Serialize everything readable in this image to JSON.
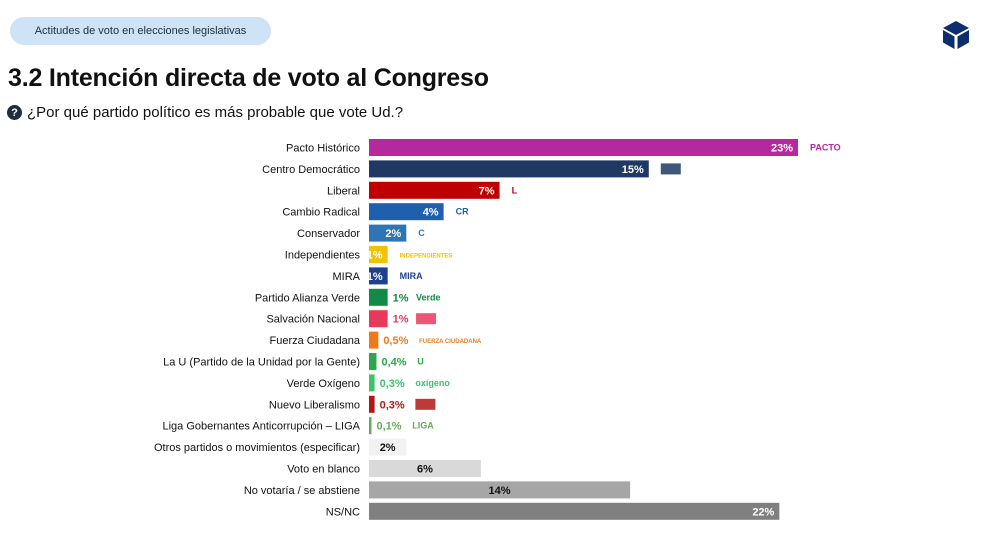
{
  "header": {
    "section_pill": "Actitudes de voto en elecciones legislativas"
  },
  "title": "3.2 Intención directa de voto al Congreso",
  "question": "¿Por qué partido político es más probable que vote Ud.?",
  "icons": {
    "brand": "cube-logo-icon",
    "question": "question-circle-icon"
  },
  "colors": {
    "brand": "#0d2d6c"
  },
  "chart_data": {
    "type": "bar",
    "orientation": "horizontal",
    "categories": [
      "Pacto Histórico",
      "Centro Democrático",
      "Liberal",
      "Cambio Radical",
      "Conservador",
      "Independientes",
      "MIRA",
      "Partido Alianza Verde",
      "Salvación Nacional",
      "Fuerza Ciudadana",
      "La U (Partido de la Unidad por la Gente)",
      "Verde Oxígeno",
      "Nuevo Liberalismo",
      "Liga Gobernantes Anticorrupción – LIGA",
      "Otros partidos o movimientos (especificar)",
      "Voto en blanco",
      "No votaría / se abstiene",
      "NS/NC"
    ],
    "values": [
      23,
      15,
      7,
      4,
      2,
      1,
      1,
      1,
      1,
      0.5,
      0.4,
      0.3,
      0.3,
      0.1,
      2,
      6,
      14,
      22
    ],
    "data_labels": [
      "23%",
      "15%",
      "7%",
      "4%",
      "2%",
      "1%",
      "1%",
      "1%",
      "1%",
      "0,5%",
      "0,4%",
      "0,3%",
      "0,3%",
      "0,1%",
      "2%",
      "6%",
      "14%",
      "22%"
    ],
    "colors": [
      "#b5289e",
      "#1f3864",
      "#c00000",
      "#1f5fad",
      "#2e75b6",
      "#f2c100",
      "#1f3f8f",
      "#138a45",
      "#e8395c",
      "#f07a1a",
      "#2aa84a",
      "#3cc46a",
      "#b01818",
      "#6aaa5a",
      "#f2f2f2",
      "#d9d9d9",
      "#a6a6a6",
      "#808080"
    ],
    "label_colors": [
      "#ffffff",
      "#ffffff",
      "#ffffff",
      "#ffffff",
      "#ffffff",
      "#ffffff",
      "#ffffff",
      "#138a45",
      "#e8395c",
      "#f07a1a",
      "#2aa84a",
      "#3cc46a",
      "#b01818",
      "#6aaa5a",
      "#111111",
      "#111111",
      "#111111",
      "#ffffff"
    ],
    "party_logos": [
      "PACTO",
      "",
      "L",
      "CR",
      "C",
      "INDEPENDIENTES",
      "MIRA",
      "Verde",
      "",
      "FUERZA CIUDADANA",
      "U",
      "oxígeno",
      "",
      "LIGA",
      "",
      "",
      "",
      ""
    ],
    "xlim": [
      0,
      23
    ],
    "grid": false,
    "legend": "none"
  }
}
